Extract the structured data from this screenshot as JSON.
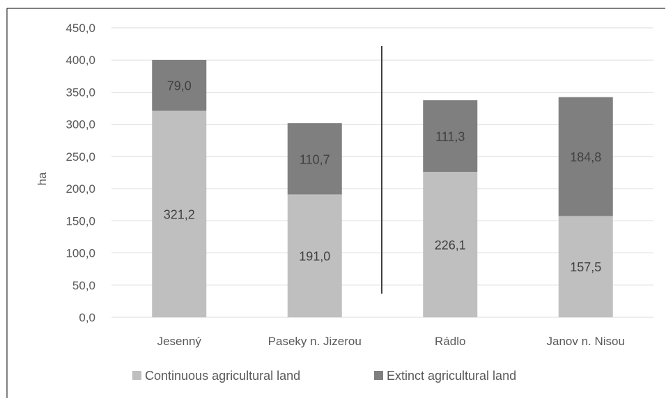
{
  "colors": {
    "continuous": "#bfbfbf",
    "extinct": "#7f7f7f",
    "grid": "#d9d9d9",
    "text": "#595959",
    "label": "#404040"
  },
  "chart_data": {
    "type": "bar",
    "stacked": true,
    "title": "",
    "xlabel": "",
    "ylabel": "ha",
    "ylim": [
      0,
      450
    ],
    "yticks": [
      "0,0",
      "50,0",
      "100,0",
      "150,0",
      "200,0",
      "250,0",
      "300,0",
      "350,0",
      "400,0",
      "450,0"
    ],
    "ytick_values": [
      0,
      50,
      100,
      150,
      200,
      250,
      300,
      350,
      400,
      450
    ],
    "grid": true,
    "legend": "bottom",
    "categories": [
      "Jesenný",
      "Paseky n. Jizerou",
      "Rádlo",
      "Janov n. Nisou"
    ],
    "series": [
      {
        "name": "Continuous agricultural land",
        "values": [
          321.2,
          191.0,
          226.1,
          157.5
        ],
        "labels": [
          "321,2",
          "191,0",
          "226,1",
          "157,5"
        ],
        "color": "#bfbfbf"
      },
      {
        "name": "Extinct agricultural land",
        "values": [
          79.0,
          110.7,
          111.3,
          184.8
        ],
        "labels": [
          "79,0",
          "110,7",
          "111,3",
          "184,8"
        ],
        "color": "#7f7f7f"
      }
    ]
  }
}
